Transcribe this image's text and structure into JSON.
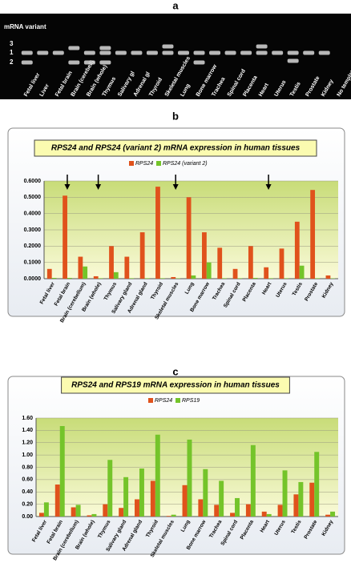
{
  "panel_labels": [
    "a",
    "b",
    "c"
  ],
  "gel": {
    "title": "mRNA variant",
    "band_labels": [
      "3",
      "1",
      "2"
    ],
    "lanes": [
      "Fetal liver",
      "Liver",
      "Fetal brain",
      "Brain (cerebell)",
      "Brain (whole)",
      "Thymus",
      "Salivary gl",
      "Adrenal gl",
      "Thyroid",
      "Skeletal muscles",
      "Lung",
      "Bone marrow",
      "Trachea",
      "Spinal cord",
      "Placenta",
      "Heart",
      "Uterus",
      "Testis",
      "Prostate",
      "Kidney",
      "No template control"
    ]
  },
  "chart_data": [
    {
      "type": "bar",
      "title": "RPS24 and RPS24 (variant 2) mRNA expression in human tissues",
      "categories": [
        "Fetal liver",
        "Fetal brain",
        "Brain (cerebellum)",
        "Brain (whole)",
        "Thymus",
        "Salivary gland",
        "Adrenal gland",
        "Thyroid",
        "Skeletal muscles",
        "Lung",
        "Bone marrow",
        "Trachea",
        "Spinal cord",
        "Placenta",
        "Heart",
        "Uterus",
        "Testis",
        "Prostate",
        "Kidney"
      ],
      "series": [
        {
          "name": "RPS24",
          "color": "#e0521c",
          "values": [
            0.06,
            0.51,
            0.135,
            0.015,
            0.2,
            0.135,
            0.285,
            0.565,
            0.01,
            0.5,
            0.285,
            0.19,
            0.06,
            0.2,
            0.07,
            0.185,
            0.35,
            0.545,
            0.02
          ]
        },
        {
          "name": "RPS24 (variant 2)",
          "color": "#74c42a",
          "values": [
            0.005,
            0.005,
            0.075,
            0.003,
            0.04,
            0.003,
            0.003,
            0.003,
            0.002,
            0.02,
            0.1,
            0.003,
            0.003,
            0.005,
            0.003,
            0.003,
            0.08,
            0.003,
            0.002
          ]
        }
      ],
      "ylim": [
        0,
        0.6
      ],
      "yticks": [
        {
          "value": 0,
          "label": "0.0000"
        },
        {
          "value": 0.1,
          "label": "0.1000"
        },
        {
          "value": 0.2,
          "label": "0.2000"
        },
        {
          "value": 0.3,
          "label": "0.3000"
        },
        {
          "value": 0.4,
          "label": "0.4000"
        },
        {
          "value": 0.5,
          "label": "0.5000"
        },
        {
          "value": 0.6,
          "label": "0.6000"
        }
      ],
      "grid": true
    },
    {
      "type": "bar",
      "title": "RPS24 and RPS19 mRNA expression in human tissues",
      "categories": [
        "Fetal liver",
        "Fetal brain",
        "Brain (cerebellum)",
        "Brain (whole)",
        "Thymus",
        "Salivary gland",
        "Adrenal gland",
        "Thyroid",
        "Skeletal muscles",
        "Lung",
        "Bone marrow",
        "Trachea",
        "Spinal cord",
        "Placenta",
        "Heart",
        "Uterus",
        "Testis",
        "Prostate",
        "Kidney"
      ],
      "series": [
        {
          "name": "RPS24",
          "color": "#e0521c",
          "values": [
            0.06,
            0.52,
            0.15,
            0.02,
            0.2,
            0.14,
            0.28,
            0.58,
            0.01,
            0.51,
            0.28,
            0.19,
            0.06,
            0.2,
            0.08,
            0.19,
            0.36,
            0.55,
            0.03
          ]
        },
        {
          "name": "RPS19",
          "color": "#74c42a",
          "values": [
            0.23,
            1.47,
            0.19,
            0.04,
            0.92,
            0.64,
            0.78,
            1.33,
            0.03,
            1.25,
            0.77,
            0.58,
            0.3,
            1.16,
            0.04,
            0.75,
            0.56,
            1.05,
            0.08
          ]
        }
      ],
      "ylim": [
        0,
        1.6
      ],
      "yticks": [
        {
          "value": 0,
          "label": "0.00"
        },
        {
          "value": 0.2,
          "label": "0.20"
        },
        {
          "value": 0.4,
          "label": "0.40"
        },
        {
          "value": 0.6,
          "label": "0.60"
        },
        {
          "value": 0.8,
          "label": "0.80"
        },
        {
          "value": 1,
          "label": "1.00"
        },
        {
          "value": 1.2,
          "label": "1.20"
        },
        {
          "value": 1.4,
          "label": "1.40"
        },
        {
          "value": 1.6,
          "label": "1.60"
        }
      ],
      "grid": true
    }
  ]
}
